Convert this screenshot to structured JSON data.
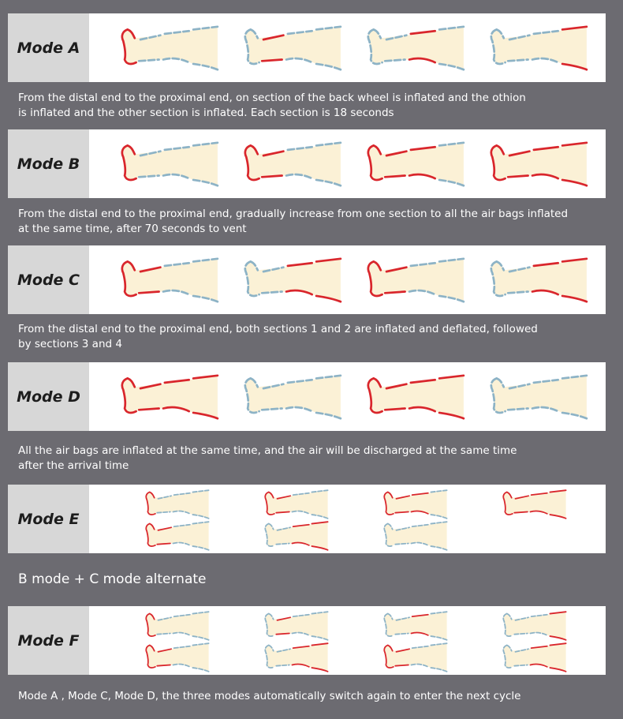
{
  "colors": {
    "inflated": "#d9262c",
    "deflated": "#8db3c6",
    "leg_fill": "#fbf1d6",
    "background": "#6c6b71",
    "label_bg": "#d7d7d7"
  },
  "modes": [
    {
      "label": "Mode A",
      "description": "From the distal end to the proximal end, on section of the back wheel is inflated and the othion\nis inflated and the other section is inflated. Each section is 18 seconds",
      "frames": [
        [
          1,
          0,
          0,
          0
        ],
        [
          0,
          1,
          0,
          0
        ],
        [
          0,
          0,
          1,
          0
        ],
        [
          0,
          0,
          0,
          1
        ]
      ]
    },
    {
      "label": "Mode B",
      "description": "From the distal end to the proximal end, gradually increase from one section to all the air bags inflated\nat the same time, after 70 seconds to vent",
      "frames": [
        [
          1,
          0,
          0,
          0
        ],
        [
          1,
          1,
          0,
          0
        ],
        [
          1,
          1,
          1,
          0
        ],
        [
          1,
          1,
          1,
          1
        ]
      ]
    },
    {
      "label": "Mode C",
      "description": "From the distal end to the proximal end, both sections 1 and 2 are inflated and deflated, followed\nby sections 3 and 4",
      "frames": [
        [
          1,
          1,
          0,
          0
        ],
        [
          0,
          0,
          1,
          1
        ],
        [
          1,
          1,
          0,
          0
        ],
        [
          0,
          0,
          1,
          1
        ]
      ]
    },
    {
      "label": "Mode D",
      "description": "All the air bags are inflated at the same time, and the air will be discharged at the same time\nafter the arrival time",
      "frames": [
        [
          1,
          1,
          1,
          1
        ],
        [
          0,
          0,
          0,
          0
        ],
        [
          1,
          1,
          1,
          1
        ],
        [
          0,
          0,
          0,
          0
        ]
      ]
    },
    {
      "label": "Mode E",
      "description": "B mode + C mode alternate",
      "frames": [
        [
          1,
          0,
          0,
          0
        ],
        [
          1,
          1,
          0,
          0
        ],
        [
          1,
          1,
          1,
          0
        ],
        [
          1,
          1,
          1,
          1
        ],
        [
          1,
          1,
          0,
          0
        ],
        [
          0,
          0,
          1,
          1
        ],
        [
          0,
          0,
          0,
          0
        ]
      ]
    },
    {
      "label": "Mode F",
      "description": "Mode A , Mode C, Mode D, the three modes automatically switch again to enter the next cycle",
      "frames": [
        [
          1,
          0,
          0,
          0
        ],
        [
          0,
          1,
          0,
          0
        ],
        [
          0,
          0,
          1,
          0
        ],
        [
          0,
          0,
          0,
          1
        ],
        [
          1,
          1,
          0,
          0
        ],
        [
          0,
          0,
          1,
          1
        ],
        [
          1,
          1,
          0,
          0
        ],
        [
          0,
          0,
          1,
          1
        ]
      ]
    }
  ]
}
